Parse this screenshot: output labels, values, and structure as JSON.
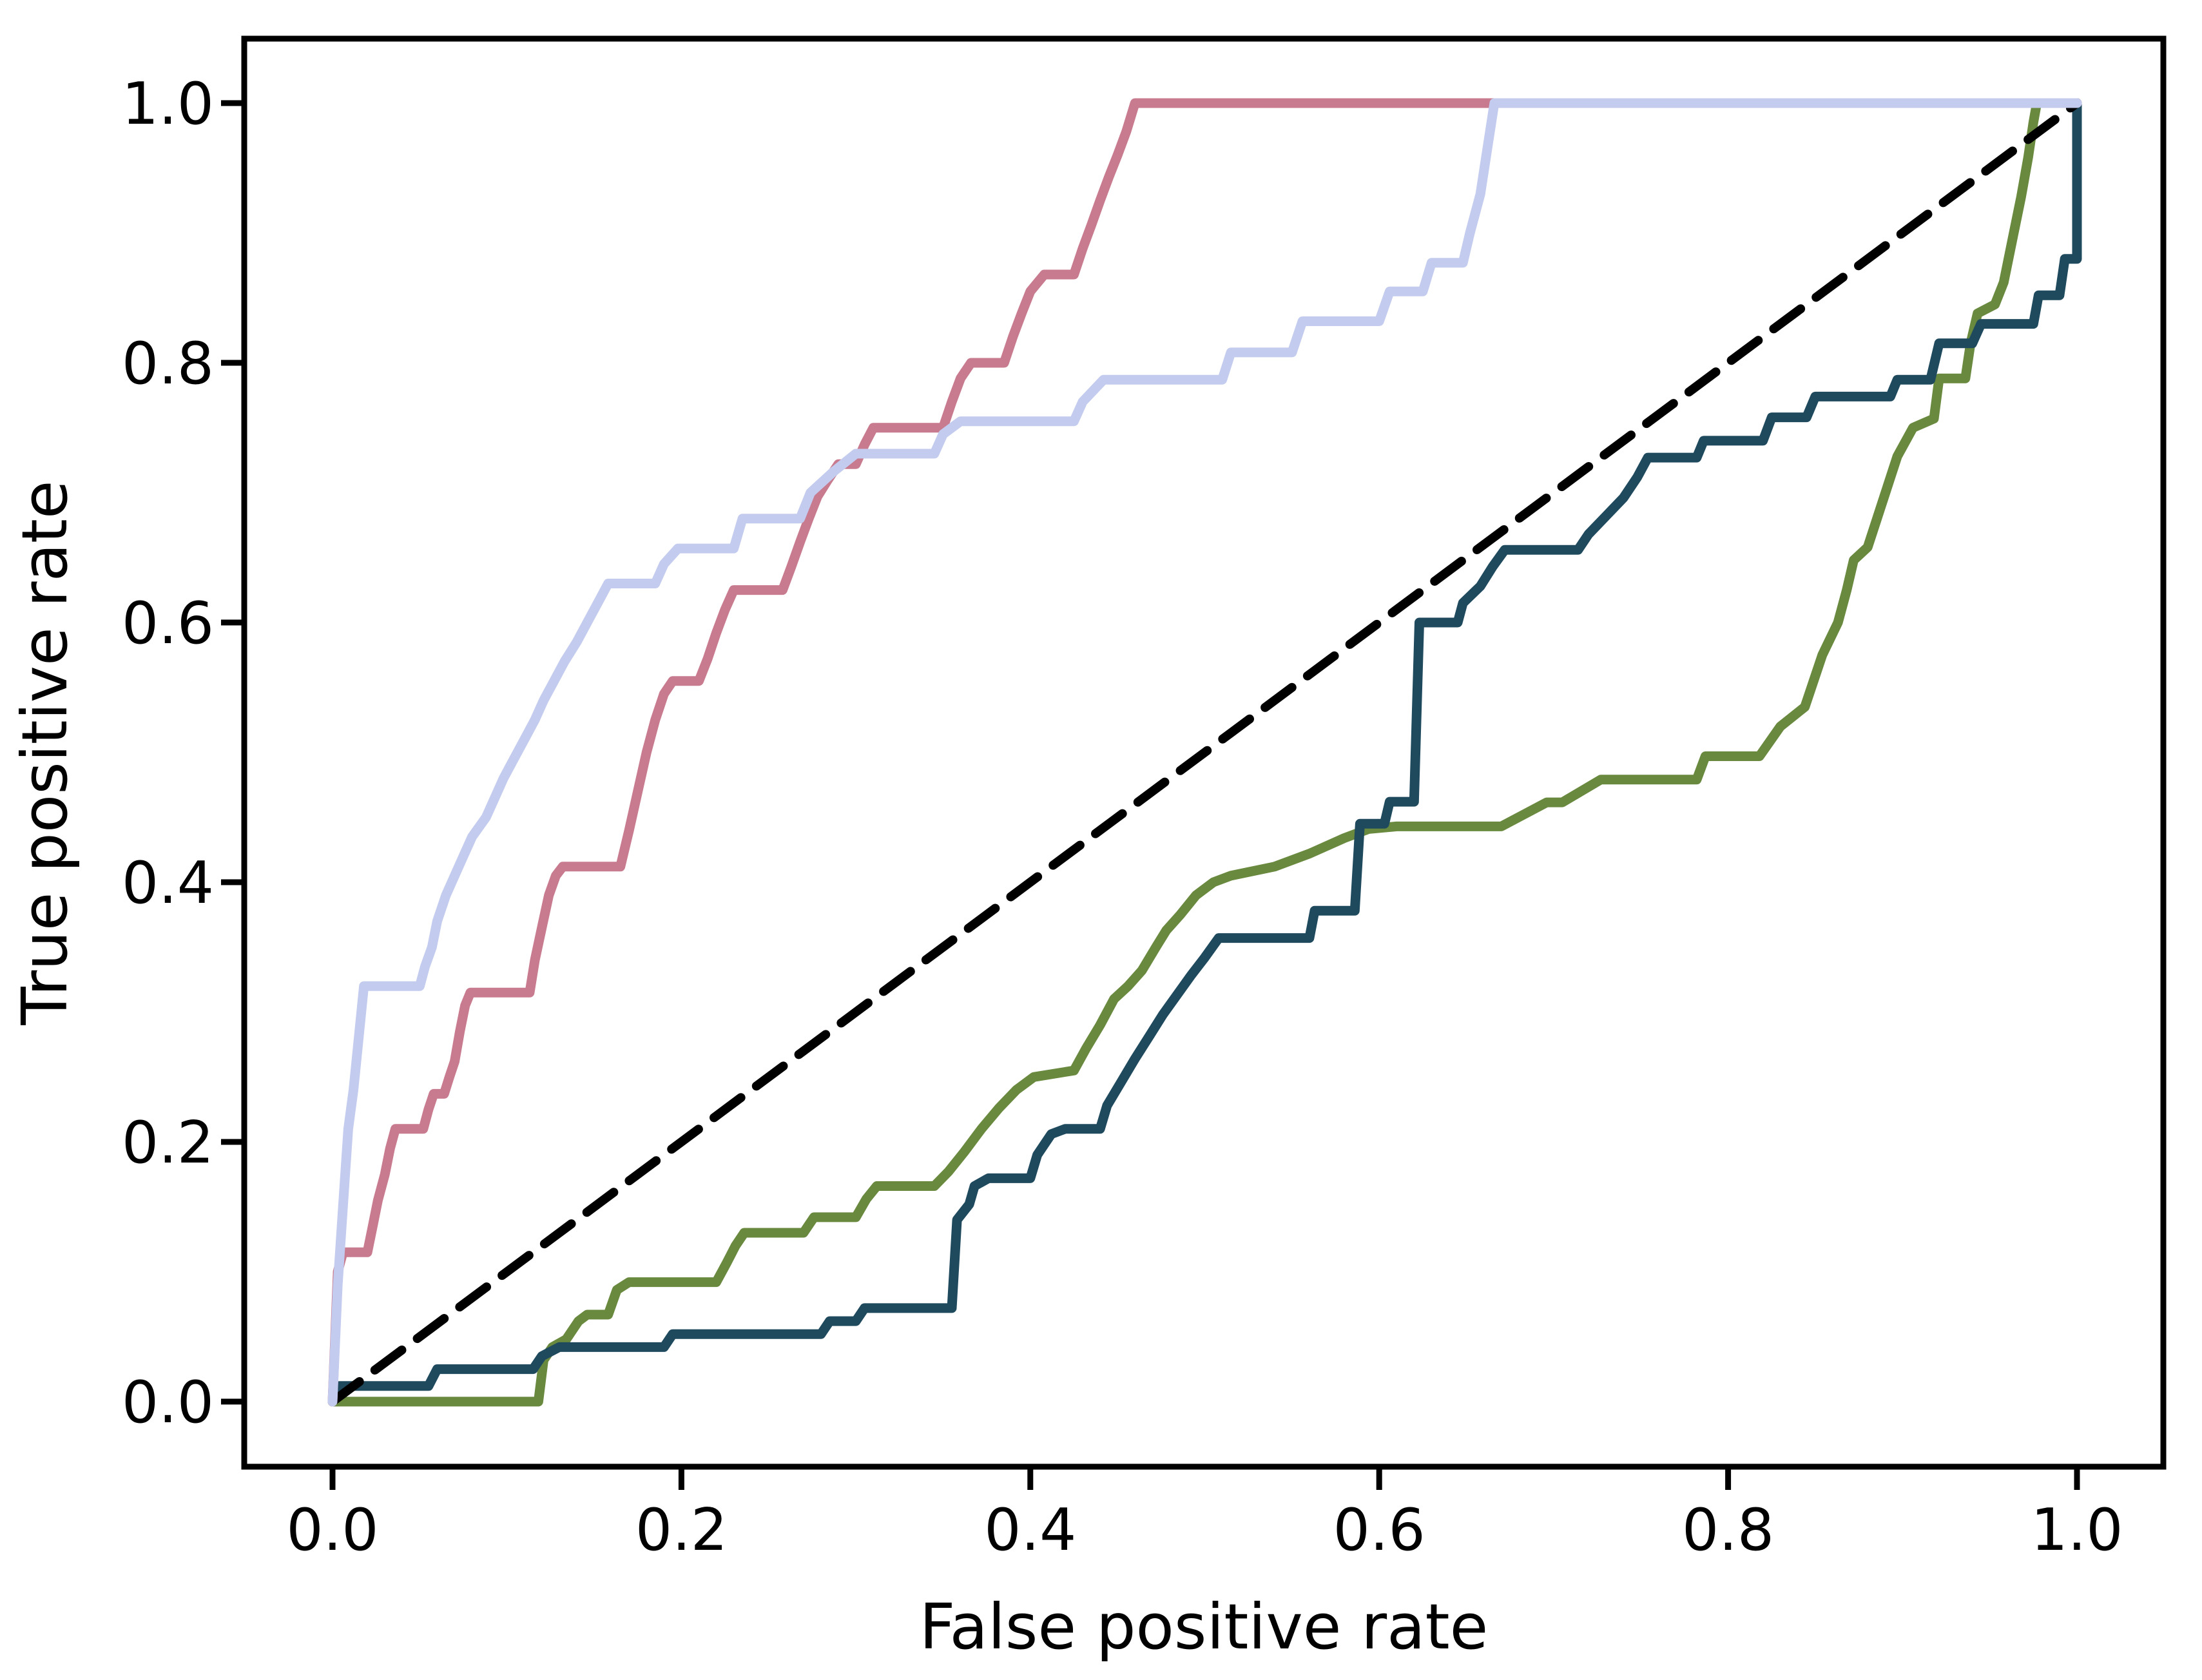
{
  "figure": {
    "background_color": "#ffffff",
    "kind": "matplotlib-style ROC figure"
  },
  "chart_data": {
    "type": "line",
    "subtype": "roc-step-curves",
    "title": "",
    "xlabel": "False positive rate",
    "ylabel": "True positive rate",
    "xlim": [
      -0.05,
      1.05
    ],
    "ylim": [
      -0.05,
      1.05
    ],
    "grid": false,
    "legend_position": "none",
    "x_ticks": [
      0.0,
      0.2,
      0.4,
      0.6,
      0.8,
      1.0
    ],
    "x_tick_labels": [
      "0.0",
      "0.2",
      "0.4",
      "0.6",
      "0.8",
      "1.0"
    ],
    "y_ticks": [
      0.0,
      0.2,
      0.4,
      0.6,
      0.8,
      1.0
    ],
    "y_tick_labels": [
      "0.0",
      "0.2",
      "0.4",
      "0.6",
      "0.8",
      "1.0"
    ],
    "axis_color": "#000000",
    "series": [
      {
        "name": "roc-curve-green",
        "color": "#68893e",
        "dashed": false,
        "points": [
          [
            0,
            0
          ],
          [
            0.118,
            0
          ],
          [
            0.121,
            0.032
          ],
          [
            0.126,
            0.042
          ],
          [
            0.134,
            0.048
          ],
          [
            0.141,
            0.062
          ],
          [
            0.146,
            0.067
          ],
          [
            0.158,
            0.067
          ],
          [
            0.163,
            0.086
          ],
          [
            0.17,
            0.092
          ],
          [
            0.22,
            0.092
          ],
          [
            0.226,
            0.107
          ],
          [
            0.231,
            0.12
          ],
          [
            0.236,
            0.13
          ],
          [
            0.27,
            0.13
          ],
          [
            0.276,
            0.142
          ],
          [
            0.3,
            0.142
          ],
          [
            0.306,
            0.156
          ],
          [
            0.312,
            0.166
          ],
          [
            0.345,
            0.166
          ],
          [
            0.353,
            0.177
          ],
          [
            0.362,
            0.192
          ],
          [
            0.372,
            0.21
          ],
          [
            0.382,
            0.226
          ],
          [
            0.392,
            0.24
          ],
          [
            0.402,
            0.25
          ],
          [
            0.425,
            0.255
          ],
          [
            0.432,
            0.272
          ],
          [
            0.44,
            0.29
          ],
          [
            0.448,
            0.31
          ],
          [
            0.456,
            0.32
          ],
          [
            0.464,
            0.332
          ],
          [
            0.472,
            0.35
          ],
          [
            0.478,
            0.363
          ],
          [
            0.486,
            0.375
          ],
          [
            0.495,
            0.39
          ],
          [
            0.505,
            0.4
          ],
          [
            0.515,
            0.405
          ],
          [
            0.54,
            0.412
          ],
          [
            0.56,
            0.422
          ],
          [
            0.58,
            0.434
          ],
          [
            0.594,
            0.441
          ],
          [
            0.61,
            0.443
          ],
          [
            0.67,
            0.443
          ],
          [
            0.696,
            0.4615
          ],
          [
            0.705,
            0.4615
          ],
          [
            0.727,
            0.479
          ],
          [
            0.782,
            0.479
          ],
          [
            0.787,
            0.497
          ],
          [
            0.818,
            0.497
          ],
          [
            0.83,
            0.52
          ],
          [
            0.844,
            0.535
          ],
          [
            0.854,
            0.575
          ],
          [
            0.863,
            0.6
          ],
          [
            0.868,
            0.625
          ],
          [
            0.872,
            0.648
          ],
          [
            0.88,
            0.658
          ],
          [
            0.897,
            0.728
          ],
          [
            0.906,
            0.75
          ],
          [
            0.918,
            0.757
          ],
          [
            0.921,
            0.788
          ],
          [
            0.936,
            0.788
          ],
          [
            0.939,
            0.815
          ],
          [
            0.943,
            0.838
          ],
          [
            0.953,
            0.845
          ],
          [
            0.958,
            0.862
          ],
          [
            0.963,
            0.895
          ],
          [
            0.968,
            0.928
          ],
          [
            0.972,
            0.958
          ],
          [
            0.975,
            0.985
          ],
          [
            0.977,
            1.0
          ],
          [
            1.0,
            1.0
          ]
        ]
      },
      {
        "name": "roc-curve-teal",
        "color": "#1f4a5e",
        "dashed": false,
        "points": [
          [
            0,
            0
          ],
          [
            0.004,
            0.012
          ],
          [
            0.055,
            0.012
          ],
          [
            0.06,
            0.025
          ],
          [
            0.115,
            0.025
          ],
          [
            0.12,
            0.035
          ],
          [
            0.13,
            0.042
          ],
          [
            0.19,
            0.042
          ],
          [
            0.195,
            0.052
          ],
          [
            0.28,
            0.052
          ],
          [
            0.285,
            0.062
          ],
          [
            0.3,
            0.062
          ],
          [
            0.305,
            0.072
          ],
          [
            0.355,
            0.072
          ],
          [
            0.358,
            0.14
          ],
          [
            0.365,
            0.152
          ],
          [
            0.368,
            0.166
          ],
          [
            0.376,
            0.172
          ],
          [
            0.4,
            0.172
          ],
          [
            0.404,
            0.19
          ],
          [
            0.412,
            0.206
          ],
          [
            0.42,
            0.21
          ],
          [
            0.44,
            0.21
          ],
          [
            0.444,
            0.228
          ],
          [
            0.452,
            0.246
          ],
          [
            0.46,
            0.264
          ],
          [
            0.468,
            0.281
          ],
          [
            0.476,
            0.298
          ],
          [
            0.484,
            0.313
          ],
          [
            0.492,
            0.328
          ],
          [
            0.5,
            0.342
          ],
          [
            0.508,
            0.357
          ],
          [
            0.56,
            0.357
          ],
          [
            0.563,
            0.378
          ],
          [
            0.586,
            0.378
          ],
          [
            0.589,
            0.445
          ],
          [
            0.603,
            0.445
          ],
          [
            0.606,
            0.462
          ],
          [
            0.62,
            0.462
          ],
          [
            0.623,
            0.6
          ],
          [
            0.645,
            0.6
          ],
          [
            0.648,
            0.615
          ],
          [
            0.658,
            0.628
          ],
          [
            0.665,
            0.643
          ],
          [
            0.672,
            0.656
          ],
          [
            0.714,
            0.656
          ],
          [
            0.72,
            0.668
          ],
          [
            0.73,
            0.682
          ],
          [
            0.74,
            0.696
          ],
          [
            0.748,
            0.712
          ],
          [
            0.754,
            0.727
          ],
          [
            0.782,
            0.727
          ],
          [
            0.786,
            0.74
          ],
          [
            0.82,
            0.74
          ],
          [
            0.825,
            0.758
          ],
          [
            0.845,
            0.758
          ],
          [
            0.85,
            0.774
          ],
          [
            0.893,
            0.774
          ],
          [
            0.897,
            0.787
          ],
          [
            0.916,
            0.787
          ],
          [
            0.921,
            0.815
          ],
          [
            0.94,
            0.815
          ],
          [
            0.945,
            0.83
          ],
          [
            0.975,
            0.83
          ],
          [
            0.978,
            0.852
          ],
          [
            0.99,
            0.852
          ],
          [
            0.993,
            0.88
          ],
          [
            1.0,
            0.88
          ],
          [
            1.0,
            1.0
          ]
        ]
      },
      {
        "name": "chance-diagonal",
        "color": "#000000",
        "dashed": true,
        "points": [
          [
            0,
            0
          ],
          [
            1.0,
            1.0
          ]
        ]
      },
      {
        "name": "roc-curve-pink",
        "color": "#c87a8e",
        "dashed": false,
        "points": [
          [
            0,
            0
          ],
          [
            0.003,
            0.1
          ],
          [
            0.006,
            0.115
          ],
          [
            0.02,
            0.115
          ],
          [
            0.023,
            0.135
          ],
          [
            0.026,
            0.155
          ],
          [
            0.03,
            0.175
          ],
          [
            0.033,
            0.195
          ],
          [
            0.036,
            0.21
          ],
          [
            0.052,
            0.21
          ],
          [
            0.055,
            0.225
          ],
          [
            0.058,
            0.237
          ],
          [
            0.064,
            0.237
          ],
          [
            0.067,
            0.25
          ],
          [
            0.07,
            0.262
          ],
          [
            0.073,
            0.285
          ],
          [
            0.076,
            0.305
          ],
          [
            0.079,
            0.315
          ],
          [
            0.113,
            0.315
          ],
          [
            0.116,
            0.34
          ],
          [
            0.12,
            0.365
          ],
          [
            0.124,
            0.39
          ],
          [
            0.128,
            0.405
          ],
          [
            0.132,
            0.412
          ],
          [
            0.165,
            0.412
          ],
          [
            0.17,
            0.44
          ],
          [
            0.175,
            0.47
          ],
          [
            0.18,
            0.5
          ],
          [
            0.185,
            0.525
          ],
          [
            0.19,
            0.545
          ],
          [
            0.195,
            0.555
          ],
          [
            0.21,
            0.555
          ],
          [
            0.215,
            0.572
          ],
          [
            0.22,
            0.592
          ],
          [
            0.225,
            0.61
          ],
          [
            0.23,
            0.625
          ],
          [
            0.258,
            0.625
          ],
          [
            0.263,
            0.643
          ],
          [
            0.268,
            0.662
          ],
          [
            0.273,
            0.68
          ],
          [
            0.278,
            0.697
          ],
          [
            0.284,
            0.71
          ],
          [
            0.29,
            0.722
          ],
          [
            0.3,
            0.722
          ],
          [
            0.305,
            0.737
          ],
          [
            0.31,
            0.75
          ],
          [
            0.35,
            0.75
          ],
          [
            0.355,
            0.77
          ],
          [
            0.36,
            0.788
          ],
          [
            0.366,
            0.8
          ],
          [
            0.385,
            0.8
          ],
          [
            0.39,
            0.82
          ],
          [
            0.395,
            0.838
          ],
          [
            0.4,
            0.855
          ],
          [
            0.408,
            0.868
          ],
          [
            0.425,
            0.868
          ],
          [
            0.43,
            0.888
          ],
          [
            0.435,
            0.906
          ],
          [
            0.44,
            0.925
          ],
          [
            0.445,
            0.943
          ],
          [
            0.45,
            0.96
          ],
          [
            0.455,
            0.978
          ],
          [
            0.46,
            1.0
          ],
          [
            1.0,
            1.0
          ]
        ]
      },
      {
        "name": "roc-curve-lavender",
        "color": "#c3cbee",
        "dashed": false,
        "points": [
          [
            0,
            0
          ],
          [
            0.003,
            0.09
          ],
          [
            0.005,
            0.13
          ],
          [
            0.007,
            0.17
          ],
          [
            0.009,
            0.21
          ],
          [
            0.012,
            0.24
          ],
          [
            0.015,
            0.28
          ],
          [
            0.018,
            0.32
          ],
          [
            0.05,
            0.32
          ],
          [
            0.053,
            0.335
          ],
          [
            0.057,
            0.35
          ],
          [
            0.06,
            0.37
          ],
          [
            0.065,
            0.39
          ],
          [
            0.07,
            0.405
          ],
          [
            0.075,
            0.42
          ],
          [
            0.08,
            0.435
          ],
          [
            0.088,
            0.45
          ],
          [
            0.093,
            0.465
          ],
          [
            0.098,
            0.48
          ],
          [
            0.104,
            0.495
          ],
          [
            0.11,
            0.51
          ],
          [
            0.116,
            0.525
          ],
          [
            0.121,
            0.54
          ],
          [
            0.127,
            0.555
          ],
          [
            0.133,
            0.57
          ],
          [
            0.14,
            0.585
          ],
          [
            0.146,
            0.6
          ],
          [
            0.152,
            0.615
          ],
          [
            0.158,
            0.63
          ],
          [
            0.185,
            0.63
          ],
          [
            0.19,
            0.645
          ],
          [
            0.198,
            0.657
          ],
          [
            0.23,
            0.657
          ],
          [
            0.235,
            0.68
          ],
          [
            0.268,
            0.68
          ],
          [
            0.274,
            0.7
          ],
          [
            0.287,
            0.716
          ],
          [
            0.3,
            0.73
          ],
          [
            0.345,
            0.73
          ],
          [
            0.35,
            0.745
          ],
          [
            0.36,
            0.755
          ],
          [
            0.425,
            0.755
          ],
          [
            0.43,
            0.77
          ],
          [
            0.442,
            0.787
          ],
          [
            0.51,
            0.787
          ],
          [
            0.515,
            0.808
          ],
          [
            0.55,
            0.808
          ],
          [
            0.556,
            0.832
          ],
          [
            0.6,
            0.832
          ],
          [
            0.606,
            0.855
          ],
          [
            0.625,
            0.855
          ],
          [
            0.63,
            0.877
          ],
          [
            0.648,
            0.877
          ],
          [
            0.652,
            0.9
          ],
          [
            0.658,
            0.93
          ],
          [
            0.662,
            0.965
          ],
          [
            0.666,
            1.0
          ],
          [
            1.0,
            1.0
          ]
        ]
      }
    ]
  }
}
